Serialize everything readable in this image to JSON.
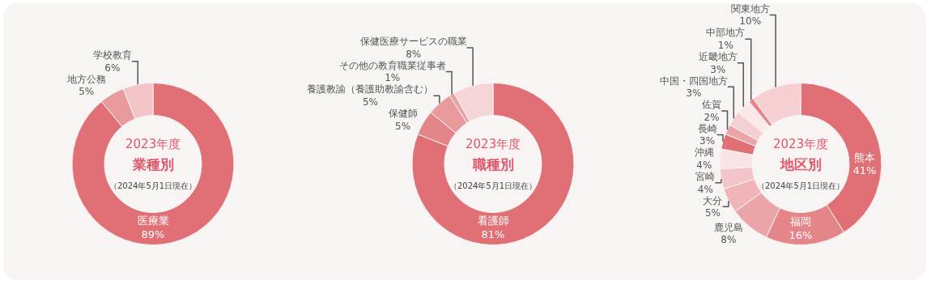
{
  "chart_data": [
    {
      "type": "donut",
      "title": "2023年度",
      "subtitle": "業種別",
      "annotations": [
        "（2024年5月1日現在）"
      ],
      "categories": [
        "医療業",
        "地方公務",
        "学校教育"
      ],
      "values": [
        89,
        5,
        6
      ],
      "value_labels": [
        "89%",
        "5%",
        "6%"
      ],
      "colors": [
        "#e07075",
        "#e89a9d",
        "#f2c4c6"
      ],
      "legend": false
    },
    {
      "type": "donut",
      "title": "2023年度",
      "subtitle": "職種別",
      "annotations": [
        "（2024年5月1日現在）"
      ],
      "categories": [
        "看護師",
        "保健師",
        "養護教諭（養護助教諭含む）",
        "その他の教育職業従事者",
        "保健医療サービスの職業"
      ],
      "values": [
        81,
        5,
        5,
        1,
        8
      ],
      "value_labels": [
        "81%",
        "5%",
        "5%",
        "1%",
        "8%"
      ],
      "colors": [
        "#e07075",
        "#e4858a",
        "#e89a9d",
        "#e8a0a3",
        "#f5d5d7"
      ],
      "legend": false
    },
    {
      "type": "donut",
      "title": "2023年度",
      "subtitle": "地区別",
      "annotations": [
        "（2024年5月1日現在）"
      ],
      "categories": [
        "熊本",
        "福岡",
        "鹿児島",
        "大分",
        "宮崎",
        "沖縄",
        "長崎",
        "佐賀",
        "中国・四国地方",
        "近畿地方",
        "中部地方",
        "関東地方"
      ],
      "values": [
        41,
        16,
        8,
        5,
        4,
        4,
        3,
        2,
        3,
        3,
        1,
        10
      ],
      "value_labels": [
        "41%",
        "16%",
        "8%",
        "5%",
        "4%",
        "4%",
        "3%",
        "2%",
        "3%",
        "3%",
        "1%",
        "10%"
      ],
      "colors": [
        "#e07075",
        "#e4858a",
        "#eba5a8",
        "#efb5b8",
        "#f2c6c8",
        "#f9e4e5",
        "#e07075",
        "#eba5a8",
        "#f5d0d2",
        "#fbe9ea",
        "#e4858a",
        "#f5cfd1"
      ],
      "legend": false
    }
  ]
}
